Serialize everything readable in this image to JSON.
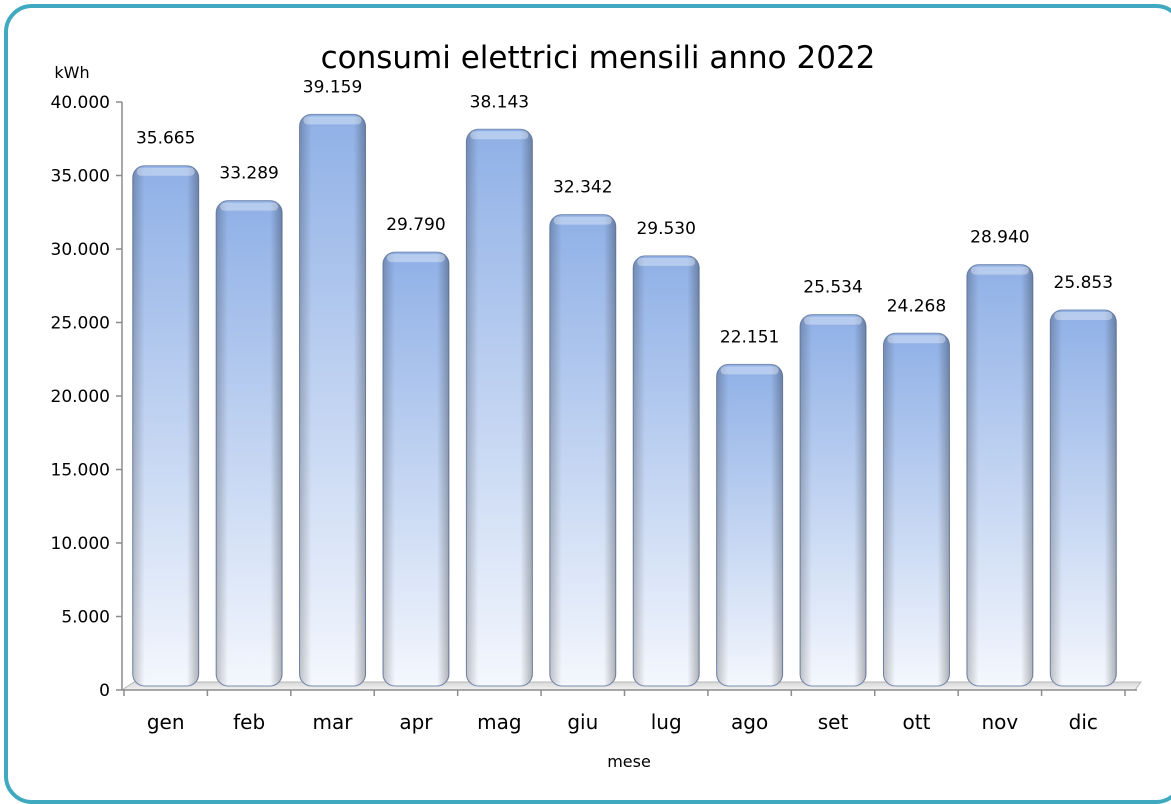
{
  "chart_data": {
    "type": "bar",
    "title": "consumi elettrici mensili anno 2022",
    "ylabel": "kWh",
    "xlabel": "mese",
    "categories": [
      "gen",
      "feb",
      "mar",
      "apr",
      "mag",
      "giu",
      "lug",
      "ago",
      "set",
      "ott",
      "nov",
      "dic"
    ],
    "values": [
      35665,
      33289,
      39159,
      29790,
      38143,
      32342,
      29530,
      22151,
      25534,
      24268,
      28940,
      25853
    ],
    "value_labels": [
      "35.665",
      "33.289",
      "39.159",
      "29.790",
      "38.143",
      "32.342",
      "29.530",
      "22.151",
      "25.534",
      "24.268",
      "28.940",
      "25.853"
    ],
    "ylim": [
      0,
      40000
    ],
    "yticks": [
      0,
      5000,
      10000,
      15000,
      20000,
      25000,
      30000,
      35000,
      40000
    ],
    "ytick_labels": [
      "0",
      "5.000",
      "10.000",
      "15.000",
      "20.000",
      "25.000",
      "30.000",
      "35.000",
      "40.000"
    ],
    "grid": false,
    "legend": "none",
    "colors": {
      "bar_top": "#8fb0e6",
      "bar_bottom": "#f4f7fd",
      "frame": "#3fa9bf",
      "axis": "#8c8c8c"
    }
  }
}
